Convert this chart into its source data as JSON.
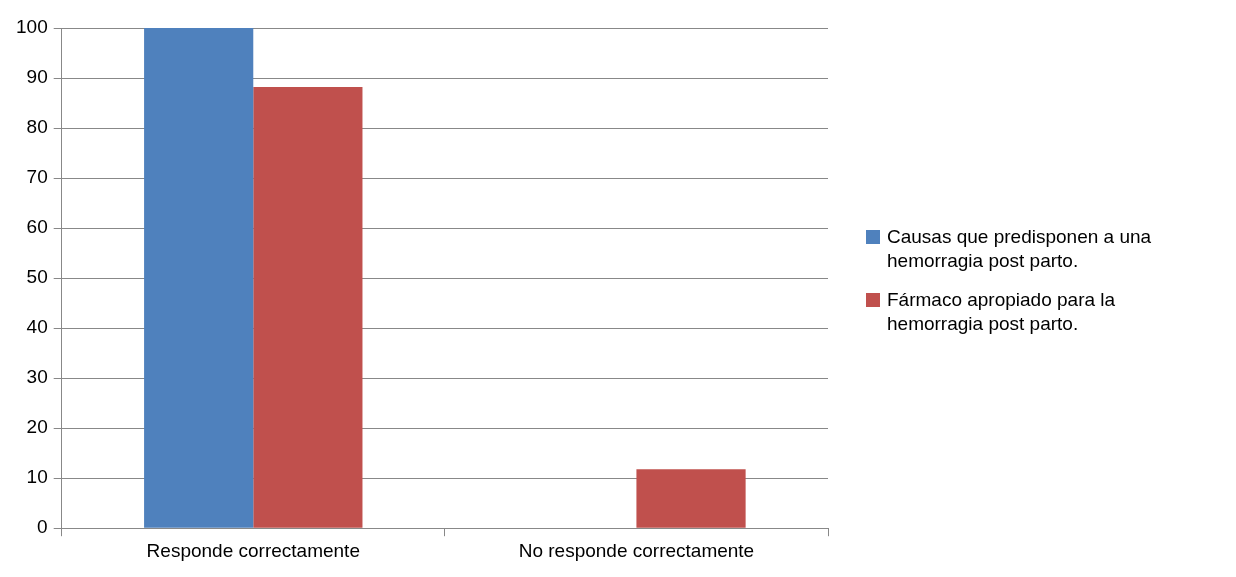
{
  "chart_data": {
    "type": "bar",
    "categories": [
      "Responde correctamente",
      "No responde correctamente"
    ],
    "series": [
      {
        "name": "Causas que predisponen a una hemorragia post parto.",
        "color": "#4f81bd",
        "values": [
          100,
          0
        ]
      },
      {
        "name": "Fármaco apropiado para la hemorragia post parto.",
        "color": "#c0504d",
        "values": [
          88.2,
          11.8
        ]
      }
    ],
    "ylim": [
      0,
      100
    ],
    "yticks": [
      0,
      10,
      20,
      30,
      40,
      50,
      60,
      70,
      80,
      90,
      100
    ],
    "grid": "y",
    "legend": "right"
  }
}
